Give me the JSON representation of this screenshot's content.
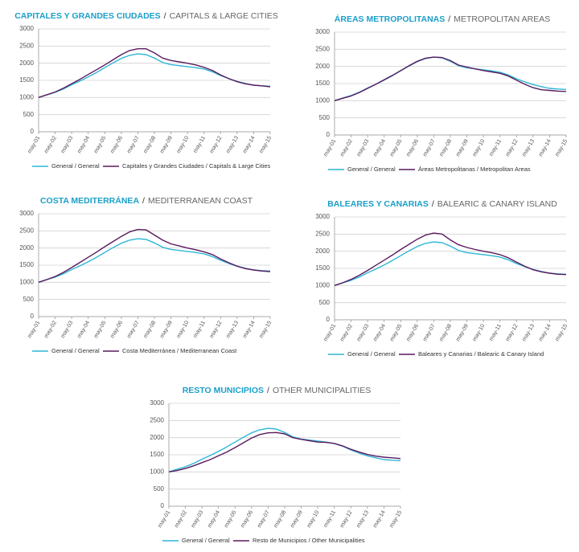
{
  "chart_data": [
    {
      "type": "line",
      "title": [
        "CAPITALES Y GRANDES CIUDADES",
        "/",
        "CAPITALS & LARGE CITIES"
      ],
      "categories": [
        "may-01",
        null,
        "may-02",
        null,
        "may-03",
        null,
        "may-04",
        null,
        "may-05",
        null,
        "may-06",
        null,
        "may-07",
        null,
        "may-08",
        null,
        "may-09",
        null,
        "may-10",
        null,
        "may-11",
        null,
        "may-12",
        null,
        "may-13",
        null,
        "may-14",
        null,
        "may-15"
      ],
      "series": [
        {
          "name": "General / General",
          "color": "#2db6d6",
          "values": [
            1000,
            1080,
            1150,
            1250,
            1370,
            1480,
            1600,
            1730,
            1870,
            2010,
            2140,
            2230,
            2270,
            2250,
            2150,
            2020,
            1960,
            1930,
            1900,
            1870,
            1830,
            1750,
            1640,
            1550,
            1470,
            1410,
            1360,
            1340,
            1330
          ]
        },
        {
          "name": "Capitales y Grandes Ciudades / Capitals & Large Cities",
          "color": "#5a1a5e",
          "values": [
            1000,
            1080,
            1160,
            1270,
            1400,
            1530,
            1670,
            1810,
            1950,
            2100,
            2250,
            2370,
            2420,
            2420,
            2300,
            2150,
            2080,
            2040,
            2000,
            1950,
            1880,
            1790,
            1660,
            1550,
            1460,
            1400,
            1360,
            1340,
            1310
          ]
        }
      ],
      "ylim": [
        0,
        3000
      ],
      "yticks": [
        0,
        500,
        1000,
        1500,
        2000,
        2500,
        3000
      ],
      "grid": true
    },
    {
      "type": "line",
      "title": [
        "ÁREAS METROPOLITANAS",
        "/",
        "METROPOLITAN AREAS"
      ],
      "categories": [
        "may-01",
        null,
        "may-02",
        null,
        "may-03",
        null,
        "may-04",
        null,
        "may-05",
        null,
        "may-06",
        null,
        "may-07",
        null,
        "may-08",
        null,
        "may-09",
        null,
        "may-10",
        null,
        "may-11",
        null,
        "may-12",
        null,
        "may-13",
        null,
        "may-14",
        null,
        "may-15"
      ],
      "series": [
        {
          "name": "General / General",
          "color": "#2db6d6",
          "values": [
            1000,
            1080,
            1150,
            1250,
            1370,
            1480,
            1600,
            1730,
            1870,
            2010,
            2140,
            2230,
            2270,
            2250,
            2150,
            2020,
            1960,
            1930,
            1900,
            1870,
            1830,
            1750,
            1640,
            1550,
            1470,
            1410,
            1360,
            1340,
            1330
          ]
        },
        {
          "name": "Áreas Metropolitanas / Metropolitan Areas",
          "color": "#5a1a5e",
          "values": [
            1000,
            1070,
            1140,
            1240,
            1360,
            1480,
            1610,
            1740,
            1880,
            2020,
            2150,
            2240,
            2270,
            2260,
            2170,
            2040,
            1980,
            1930,
            1880,
            1840,
            1800,
            1720,
            1600,
            1480,
            1380,
            1320,
            1300,
            1280,
            1270
          ]
        }
      ],
      "ylim": [
        0,
        3000
      ],
      "yticks": [
        0,
        500,
        1000,
        1500,
        2000,
        2500,
        3000
      ],
      "grid": true
    },
    {
      "type": "line",
      "title": [
        "COSTA MEDITERRÁNEA",
        "/",
        "MEDITERRANEAN COAST"
      ],
      "categories": [
        "may-01",
        null,
        "may-02",
        null,
        "may-03",
        null,
        "may-04",
        null,
        "may-05",
        null,
        "may-06",
        null,
        "may-07",
        null,
        "may-08",
        null,
        "may-09",
        null,
        "may-10",
        null,
        "may-11",
        null,
        "may-12",
        null,
        "may-13",
        null,
        "may-14",
        null,
        "may-15"
      ],
      "series": [
        {
          "name": "General / General",
          "color": "#2db6d6",
          "values": [
            1000,
            1080,
            1150,
            1250,
            1370,
            1480,
            1600,
            1730,
            1870,
            2010,
            2140,
            2230,
            2270,
            2250,
            2150,
            2020,
            1960,
            1930,
            1900,
            1870,
            1830,
            1750,
            1640,
            1550,
            1470,
            1410,
            1360,
            1340,
            1330
          ]
        },
        {
          "name": "Costa Mediterránea / Mediterranean Coast",
          "color": "#5a1a5e",
          "values": [
            1000,
            1080,
            1170,
            1290,
            1430,
            1580,
            1730,
            1880,
            2040,
            2190,
            2340,
            2470,
            2540,
            2530,
            2380,
            2230,
            2120,
            2060,
            2000,
            1950,
            1890,
            1810,
            1680,
            1570,
            1470,
            1400,
            1360,
            1330,
            1310
          ]
        }
      ],
      "ylim": [
        0,
        3000
      ],
      "yticks": [
        0,
        500,
        1000,
        1500,
        2000,
        2500,
        3000
      ],
      "grid": true
    },
    {
      "type": "line",
      "title": [
        "BALEARES Y CANARIAS",
        "/",
        "BALEARIC & CANARY ISLAND"
      ],
      "categories": [
        "may-01",
        null,
        "may-02",
        null,
        "may-03",
        null,
        "may-04",
        null,
        "may-05",
        null,
        "may-06",
        null,
        "may-07",
        null,
        "may-08",
        null,
        "may-09",
        null,
        "may-10",
        null,
        "may-11",
        null,
        "may-12",
        null,
        "may-13",
        null,
        "may-14",
        null,
        "may-15"
      ],
      "series": [
        {
          "name": "General / General",
          "color": "#2db6d6",
          "values": [
            1000,
            1080,
            1150,
            1250,
            1370,
            1480,
            1600,
            1730,
            1870,
            2010,
            2140,
            2230,
            2270,
            2250,
            2150,
            2020,
            1960,
            1930,
            1900,
            1870,
            1830,
            1750,
            1640,
            1550,
            1470,
            1410,
            1360,
            1340,
            1330
          ]
        },
        {
          "name": "Baleares y Canarias / Balearic & Canary Island",
          "color": "#5a1a5e",
          "values": [
            1000,
            1080,
            1180,
            1300,
            1440,
            1590,
            1740,
            1890,
            2050,
            2200,
            2350,
            2470,
            2530,
            2500,
            2330,
            2190,
            2110,
            2050,
            2000,
            1960,
            1900,
            1810,
            1680,
            1560,
            1460,
            1400,
            1360,
            1330,
            1320
          ]
        }
      ],
      "ylim": [
        0,
        3000
      ],
      "yticks": [
        0,
        500,
        1000,
        1500,
        2000,
        2500,
        3000
      ],
      "grid": true
    },
    {
      "type": "line",
      "title": [
        "RESTO MUNICIPIOS",
        "/",
        "OTHER MUNICIPALITIES"
      ],
      "categories": [
        "may-01",
        null,
        "may-02",
        null,
        "may-03",
        null,
        "may-04",
        null,
        "may-05",
        null,
        "may-06",
        null,
        "may-07",
        null,
        "may-08",
        null,
        "may-09",
        null,
        "may-10",
        null,
        "may-11",
        null,
        "may-12",
        null,
        "may-13",
        null,
        "may-14",
        null,
        "may-15"
      ],
      "series": [
        {
          "name": "General / General",
          "color": "#2db6d6",
          "values": [
            1000,
            1080,
            1150,
            1250,
            1370,
            1480,
            1600,
            1730,
            1870,
            2010,
            2140,
            2230,
            2270,
            2250,
            2150,
            2020,
            1960,
            1930,
            1900,
            1870,
            1830,
            1750,
            1640,
            1550,
            1470,
            1410,
            1360,
            1340,
            1330
          ]
        },
        {
          "name": "Resto de Municipios / Other Municipalities",
          "color": "#5a1a5e",
          "values": [
            1000,
            1040,
            1100,
            1180,
            1270,
            1360,
            1470,
            1580,
            1710,
            1850,
            1990,
            2090,
            2140,
            2150,
            2110,
            2000,
            1950,
            1910,
            1870,
            1860,
            1830,
            1760,
            1660,
            1580,
            1510,
            1460,
            1430,
            1410,
            1390
          ]
        }
      ],
      "ylim": [
        0,
        3000
      ],
      "yticks": [
        0,
        500,
        1000,
        1500,
        2000,
        2500,
        3000
      ],
      "grid": true
    }
  ]
}
